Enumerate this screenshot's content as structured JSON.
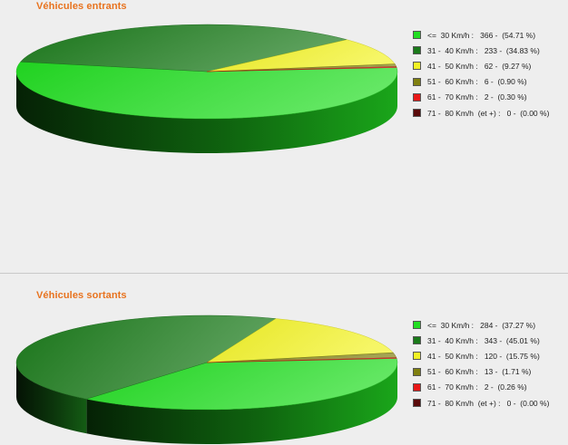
{
  "classes": [
    {
      "label": "<=  30 Km/h :",
      "color": "#22dd22"
    },
    {
      "label": "31 -  40 Km/h :",
      "color": "#1a7a1a"
    },
    {
      "label": "41 -  50 Km/h :",
      "color": "#f2f224"
    },
    {
      "label": "51 -  60 Km/h :",
      "color": "#808010"
    },
    {
      "label": "61 -  70 Km/h :",
      "color": "#e81818"
    },
    {
      "label": "71 -  80 Km/h  (et +) :",
      "color": "#5a0a0a"
    }
  ],
  "chart_data": [
    {
      "type": "pie",
      "title": "Véhicules entrants",
      "categories": [
        "<= 30 Km/h",
        "31 - 40 Km/h",
        "41 - 50 Km/h",
        "51 - 60 Km/h",
        "61 - 70 Km/h",
        "71 - 80 Km/h (et +)"
      ],
      "values": [
        366,
        233,
        62,
        6,
        2,
        0
      ],
      "percent_labels": [
        "(54.71 %)",
        "(34.83 %)",
        "(9.27 %)",
        "(0.90 %)",
        "(0.30 %)",
        "(0.00 %)"
      ],
      "legend_position": "right"
    },
    {
      "type": "pie",
      "title": "Véhicules sortants",
      "categories": [
        "<= 30 Km/h",
        "31 - 40 Km/h",
        "41 - 50 Km/h",
        "51 - 60 Km/h",
        "61 - 70 Km/h",
        "71 - 80 Km/h (et +)"
      ],
      "values": [
        284,
        343,
        120,
        13,
        2,
        0
      ],
      "percent_labels": [
        "(37.27 %)",
        "(45.01 %)",
        "(15.75 %)",
        "(1.71 %)",
        "(0.26 %)",
        "(0.00 %)"
      ],
      "legend_position": "right"
    }
  ]
}
